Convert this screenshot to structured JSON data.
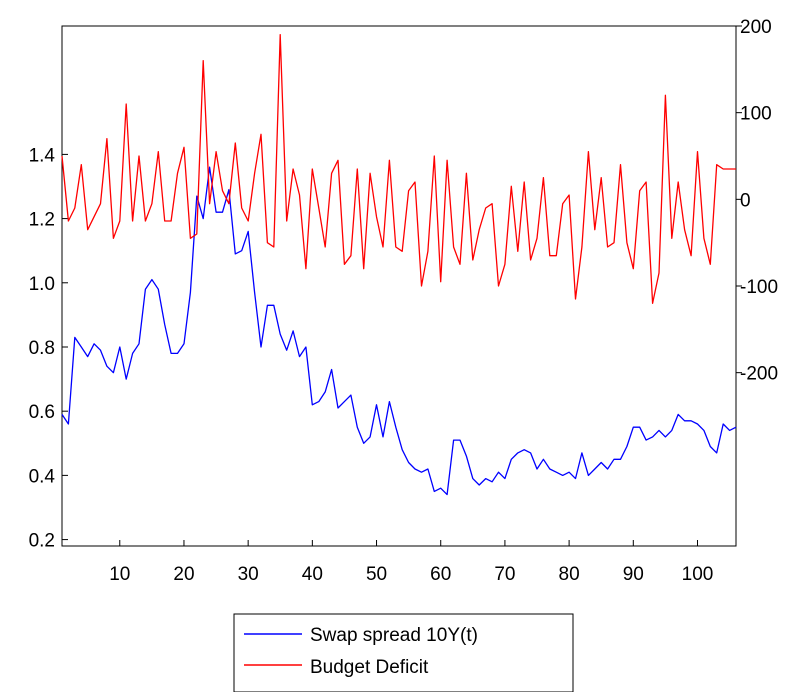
{
  "chart_data": {
    "type": "line",
    "title": "",
    "xlabel": "",
    "ylabel_left": "",
    "ylabel_right": "",
    "grid": false,
    "legend_position": "bottom-center",
    "x_range": [
      1,
      106
    ],
    "x_ticks": [
      "10",
      "20",
      "30",
      "40",
      "50",
      "60",
      "70",
      "80",
      "90",
      "100"
    ],
    "y_left_range": [
      0.18,
      1.8
    ],
    "y_left_ticks": [
      "0.2",
      "0.4",
      "0.6",
      "0.8",
      "1.0",
      "1.2",
      "1.4"
    ],
    "y_right_range": [
      -400,
      200
    ],
    "y_right_ticks": [
      "200",
      "100",
      "0",
      "-100",
      "-200"
    ],
    "series": [
      {
        "name": "Swap spread 10Y(t)",
        "color": "#0000ff",
        "axis": "left",
        "values": [
          0.59,
          0.56,
          0.83,
          0.8,
          0.77,
          0.81,
          0.79,
          0.74,
          0.72,
          0.8,
          0.7,
          0.78,
          0.81,
          0.98,
          1.01,
          0.98,
          0.87,
          0.78,
          0.78,
          0.81,
          0.97,
          1.27,
          1.2,
          1.36,
          1.22,
          1.22,
          1.29,
          1.09,
          1.1,
          1.16,
          0.97,
          0.8,
          0.93,
          0.93,
          0.84,
          0.79,
          0.85,
          0.77,
          0.8,
          0.62,
          0.63,
          0.66,
          0.73,
          0.61,
          0.63,
          0.65,
          0.55,
          0.5,
          0.52,
          0.62,
          0.52,
          0.63,
          0.55,
          0.48,
          0.44,
          0.42,
          0.41,
          0.42,
          0.35,
          0.36,
          0.34,
          0.51,
          0.51,
          0.46,
          0.39,
          0.37,
          0.39,
          0.38,
          0.41,
          0.39,
          0.45,
          0.47,
          0.48,
          0.47,
          0.42,
          0.45,
          0.42,
          0.41,
          0.4,
          0.41,
          0.39,
          0.47,
          0.4,
          0.42,
          0.44,
          0.42,
          0.45,
          0.45,
          0.49,
          0.55,
          0.55,
          0.51,
          0.52,
          0.54,
          0.52,
          0.54,
          0.59,
          0.57,
          0.57,
          0.56,
          0.54,
          0.49,
          0.47,
          0.56,
          0.54,
          0.55
        ]
      },
      {
        "name": "Budget Deficit",
        "color": "#ff0000",
        "axis": "right",
        "values": [
          50,
          -25,
          -10,
          40,
          -35,
          -20,
          -5,
          70,
          -45,
          -25,
          110,
          -25,
          50,
          -25,
          -5,
          55,
          -25,
          -25,
          30,
          60,
          -45,
          -40,
          160,
          -5,
          55,
          10,
          -5,
          65,
          -10,
          -25,
          30,
          75,
          -50,
          -55,
          190,
          -25,
          35,
          5,
          -80,
          35,
          -10,
          -55,
          30,
          45,
          -75,
          -65,
          35,
          -80,
          30,
          -20,
          -55,
          45,
          -55,
          -60,
          10,
          20,
          -100,
          -60,
          50,
          -95,
          45,
          -55,
          -75,
          30,
          -70,
          -35,
          -10,
          -5,
          -100,
          -75,
          15,
          -60,
          20,
          -70,
          -45,
          25,
          -65,
          -65,
          -5,
          5,
          -115,
          -55,
          55,
          -35,
          25,
          -55,
          -50,
          40,
          -50,
          -80,
          10,
          20,
          -120,
          -85,
          120,
          -45,
          20,
          -35,
          -65,
          55,
          -45,
          -75,
          40,
          35,
          35,
          35
        ]
      }
    ]
  }
}
